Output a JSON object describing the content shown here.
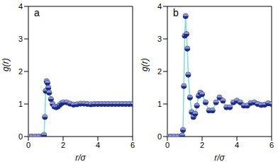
{
  "chart_data": [
    {
      "type": "line",
      "title": "a",
      "xlabel": "r/σ",
      "ylabel": "g(r)",
      "x": [
        0,
        0.2,
        0.4,
        0.6,
        0.8,
        0.85,
        0.9,
        0.95,
        1.0,
        1.05,
        1.1,
        1.15,
        1.2,
        1.3,
        1.4,
        1.5,
        1.6,
        1.7,
        1.8,
        1.9,
        2.0,
        2.2,
        2.4,
        2.6,
        2.8,
        3.0,
        3.2,
        3.4,
        3.6,
        3.8,
        4.0,
        4.2,
        4.4,
        4.6,
        4.8,
        5.0,
        5.2,
        5.4,
        5.6,
        5.8,
        6.0
      ],
      "series": [
        {
          "type": "line",
          "color": "#7fdcd6",
          "line_style": "solid",
          "values": [
            0,
            0,
            0,
            0,
            0,
            0.01,
            0.05,
            0.6,
            1.4,
            1.7,
            1.65,
            1.5,
            1.35,
            1.15,
            1.0,
            0.92,
            0.9,
            0.92,
            0.97,
            1.02,
            1.05,
            1.05,
            1.01,
            0.98,
            0.99,
            1.01,
            1.01,
            1.0,
            0.99,
            1.0,
            1.0,
            1.0,
            1.0,
            1.0,
            1.0,
            1.0,
            1.0,
            1.0,
            1.0,
            1.0,
            1.0
          ]
        },
        {
          "type": "scatter",
          "color": "#1c2a8a",
          "marker": "circle",
          "values": [
            0,
            0,
            0,
            0,
            0,
            0.01,
            0.05,
            0.6,
            1.4,
            1.7,
            1.65,
            1.5,
            1.35,
            1.15,
            1.0,
            0.92,
            0.9,
            0.92,
            0.97,
            1.02,
            1.05,
            1.05,
            1.01,
            0.98,
            0.99,
            1.01,
            1.01,
            1.0,
            0.99,
            1.0,
            1.0,
            1.0,
            1.0,
            1.0,
            1.0,
            1.0,
            1.0,
            1.0,
            1.0,
            1.0,
            1.0
          ]
        }
      ],
      "xlim": [
        0,
        6
      ],
      "xticks": [
        0,
        2,
        4,
        6
      ],
      "ylim": [
        0,
        4
      ],
      "yticks": [
        0,
        1,
        2,
        3,
        4
      ]
    },
    {
      "type": "line",
      "title": "b",
      "xlabel": "r/σ",
      "ylabel": "g(r)",
      "x": [
        0,
        0.2,
        0.4,
        0.6,
        0.8,
        0.85,
        0.9,
        0.95,
        1.0,
        1.05,
        1.1,
        1.15,
        1.2,
        1.3,
        1.4,
        1.5,
        1.6,
        1.7,
        1.8,
        1.9,
        2.0,
        2.2,
        2.4,
        2.6,
        2.8,
        3.0,
        3.2,
        3.4,
        3.6,
        3.8,
        4.0,
        4.2,
        4.4,
        4.6,
        4.8,
        5.0,
        5.2,
        5.4,
        5.6,
        5.8,
        6.0
      ],
      "series": [
        {
          "type": "line",
          "color": "#7fdcd6",
          "line_style": "solid",
          "values": [
            0,
            0,
            0,
            0,
            0,
            0.03,
            0.2,
            1.55,
            3.1,
            3.7,
            3.15,
            2.7,
            1.9,
            1.2,
            0.75,
            0.6,
            0.7,
            0.95,
            1.25,
            1.35,
            1.3,
            1.05,
            0.8,
            0.8,
            1.05,
            1.2,
            1.1,
            0.9,
            0.9,
            1.05,
            1.1,
            1.05,
            0.95,
            0.95,
            1.03,
            1.05,
            1.0,
            0.97,
            0.98,
            1.02,
            1.0
          ]
        },
        {
          "type": "scatter",
          "color": "#1c2a8a",
          "marker": "circle",
          "values": [
            0,
            0,
            0,
            0,
            0,
            0.03,
            0.2,
            1.55,
            3.1,
            3.7,
            3.15,
            2.7,
            1.9,
            1.2,
            0.75,
            0.6,
            0.7,
            0.95,
            1.25,
            1.35,
            1.3,
            1.05,
            0.8,
            0.8,
            1.05,
            1.2,
            1.1,
            0.9,
            0.9,
            1.05,
            1.1,
            1.05,
            0.95,
            0.95,
            1.03,
            1.05,
            1.0,
            0.97,
            0.98,
            1.02,
            1.0
          ]
        }
      ],
      "xlim": [
        0,
        6
      ],
      "xticks": [
        0,
        2,
        4,
        6
      ],
      "ylim": [
        0,
        4
      ],
      "yticks": [
        0,
        1,
        2,
        3,
        4
      ]
    }
  ]
}
